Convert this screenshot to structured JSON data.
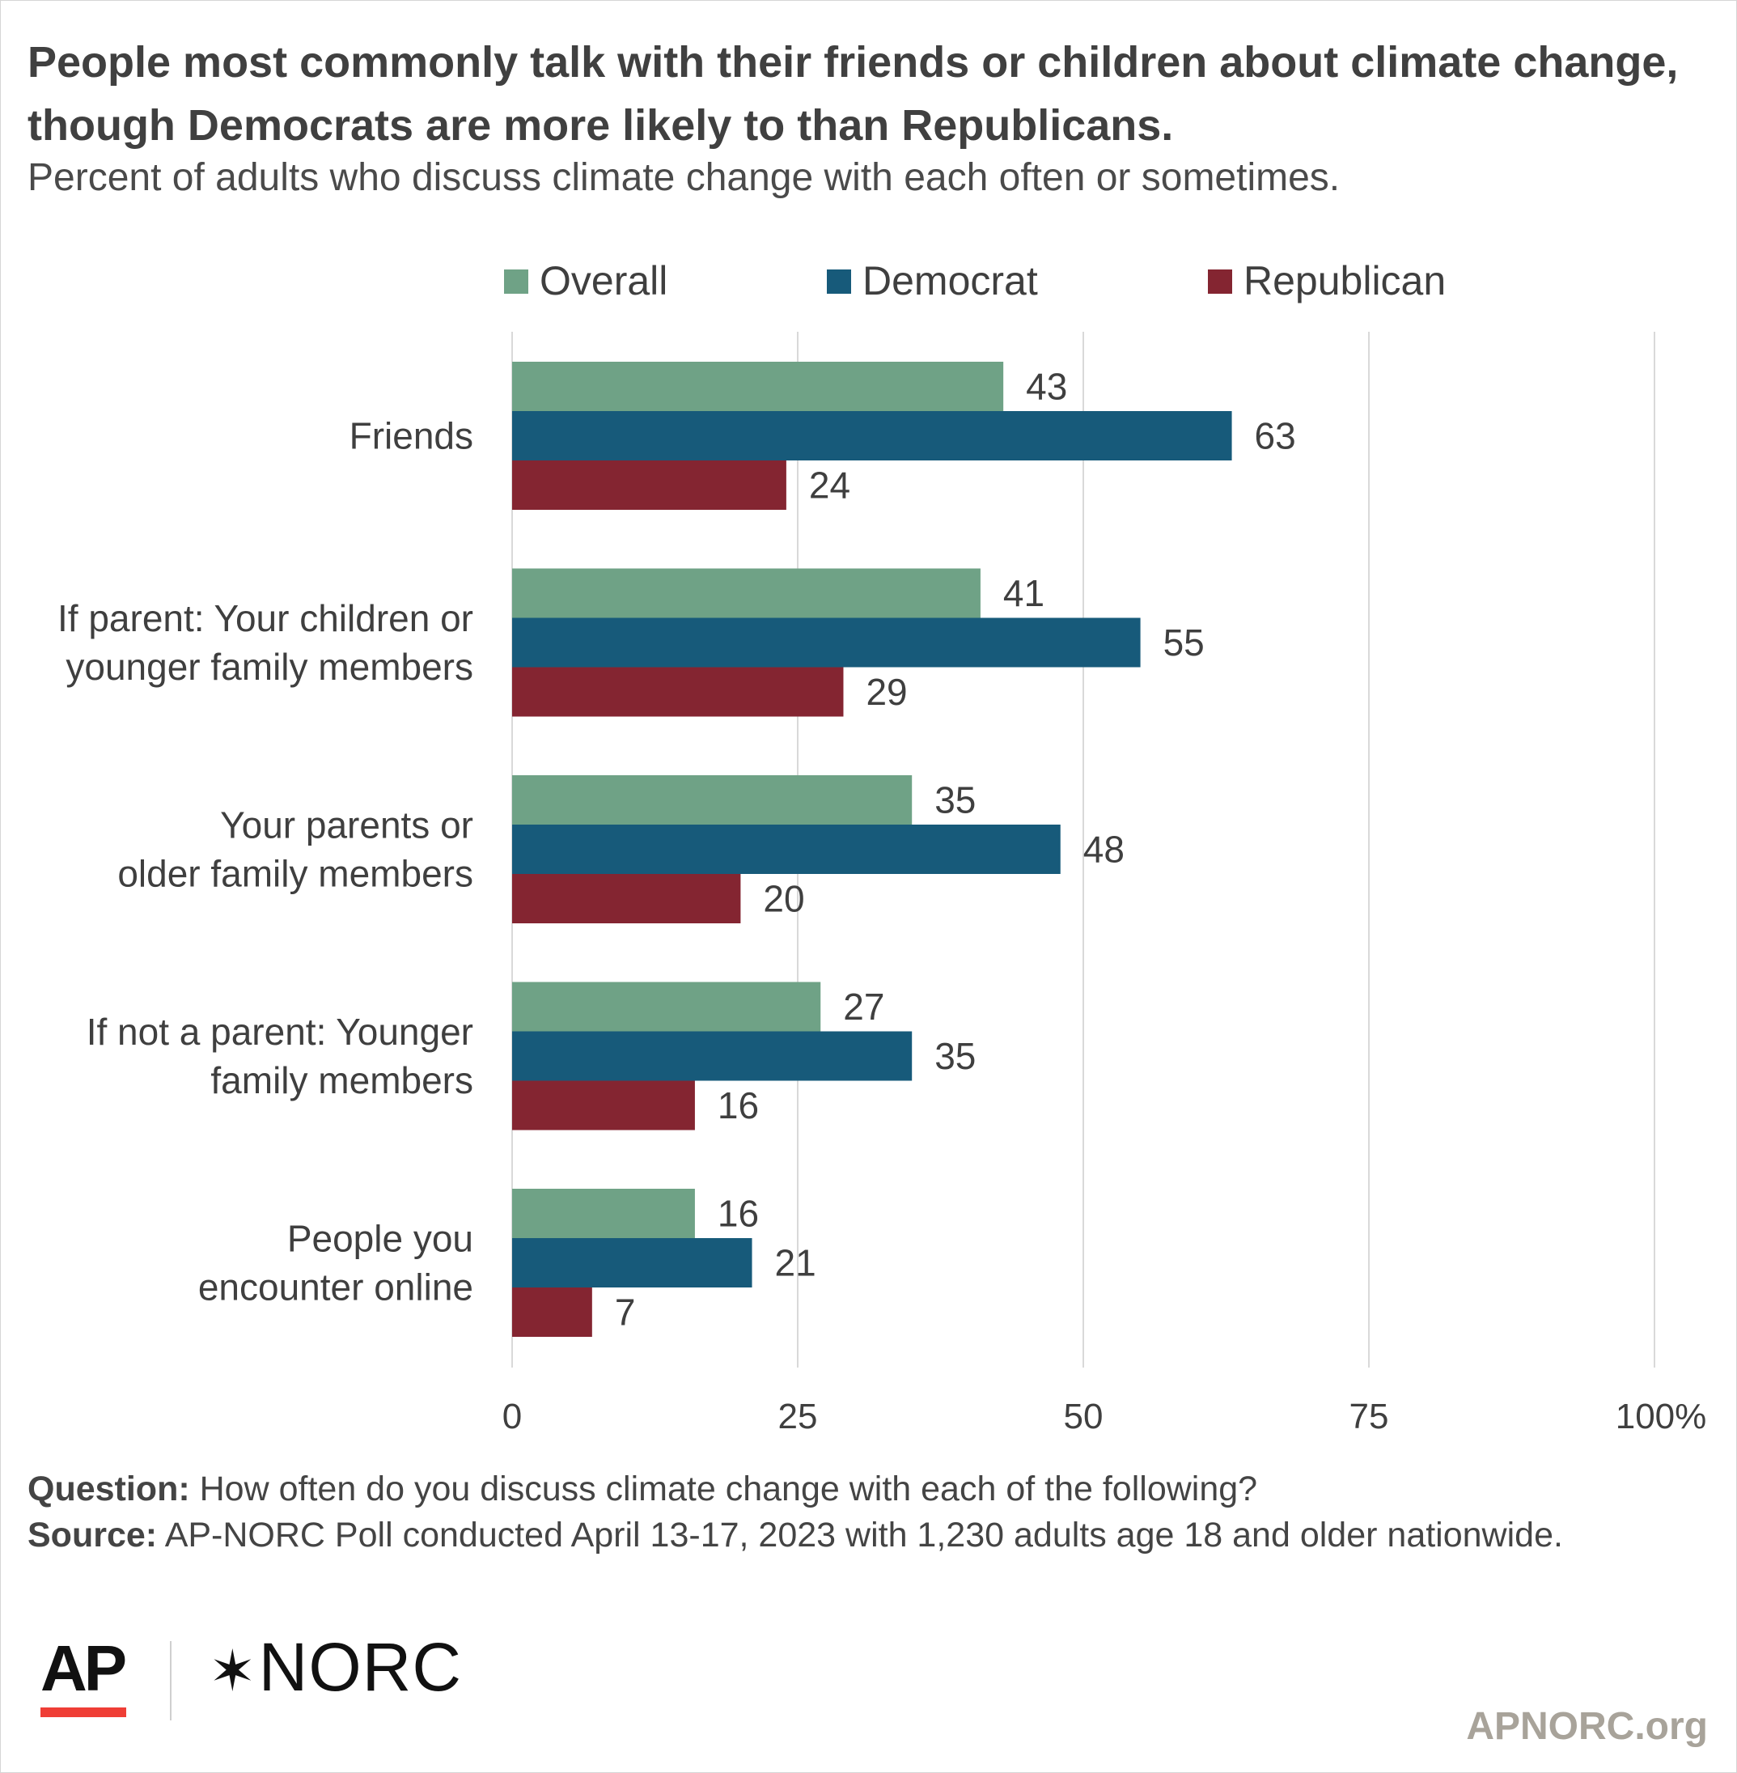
{
  "title": "People most commonly talk with their friends or children about climate change, though Democrats are more likely to than Republicans.",
  "subtitle": "Percent of adults who discuss climate change with each often or sometimes.",
  "colors": {
    "overall": "#6fa286",
    "democrat": "#175a7a",
    "republican": "#842531",
    "grid": "#d9d9d9"
  },
  "chart_data": {
    "type": "bar",
    "orientation": "horizontal",
    "categories": [
      [
        "Friends"
      ],
      [
        "If parent: Your children or",
        "younger family members"
      ],
      [
        "Your parents or",
        "older family members"
      ],
      [
        "If not a parent: Younger",
        "family members"
      ],
      [
        "People you",
        "encounter online"
      ]
    ],
    "series": [
      {
        "name": "Overall",
        "color": "#6fa286",
        "values": [
          43,
          41,
          35,
          27,
          16
        ]
      },
      {
        "name": "Democrat",
        "color": "#175a7a",
        "values": [
          63,
          55,
          48,
          35,
          21
        ]
      },
      {
        "name": "Republican",
        "color": "#842531",
        "values": [
          24,
          29,
          20,
          16,
          7
        ]
      }
    ],
    "xlim": [
      0,
      100
    ],
    "xticks": [
      "0",
      "25",
      "50",
      "75",
      "100%"
    ],
    "grid": true,
    "legend": "top"
  },
  "notes": {
    "question_label": "Question:",
    "question_text": "How often do you discuss climate change with each of the following?",
    "source_label": "Source:",
    "source_text": "AP-NORC Poll conducted April 13-17, 2023 with 1,230 adults age 18 and older nationwide."
  },
  "branding": {
    "ap": "AP",
    "norc": "NORC",
    "norc_mark": "✶",
    "site": "APNORC.org"
  }
}
